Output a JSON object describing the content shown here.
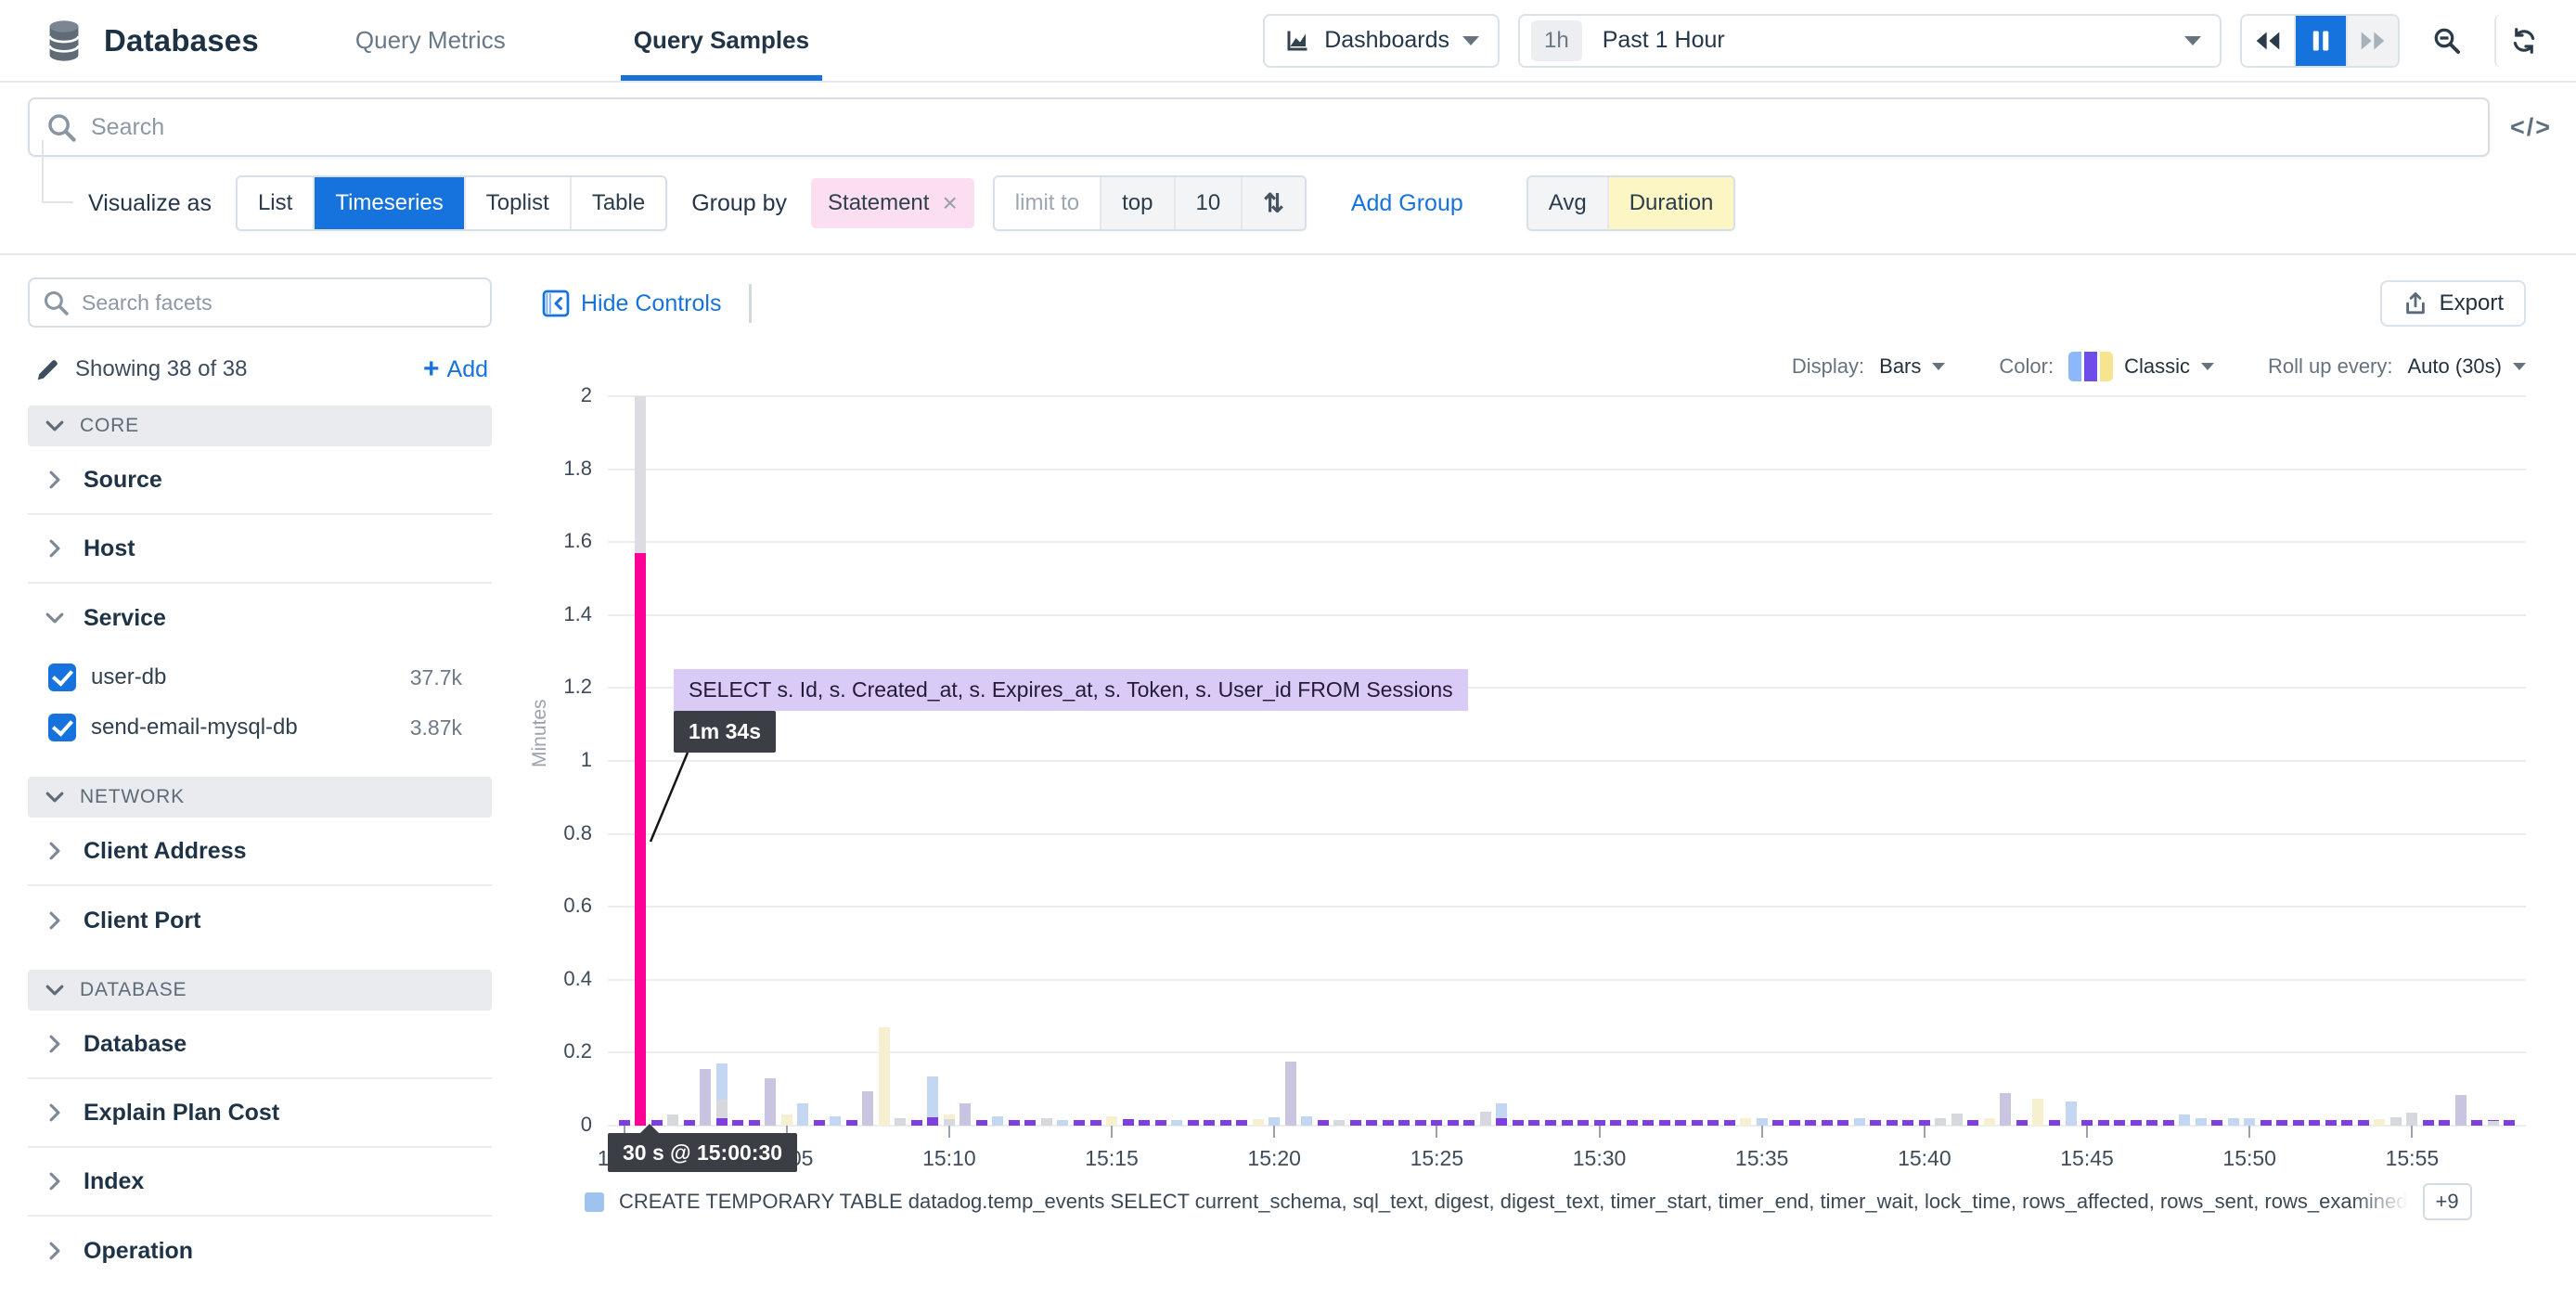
{
  "topnav": {
    "title": "Databases",
    "tabs": [
      {
        "label": "Query Metrics",
        "active": false
      },
      {
        "label": "Query Samples",
        "active": true
      }
    ],
    "dashboards_label": "Dashboards",
    "time_range_badge": "1h",
    "time_range_label": "Past 1 Hour"
  },
  "search": {
    "placeholder": "Search"
  },
  "filters": {
    "visualize_as_label": "Visualize as",
    "view_options": [
      "List",
      "Timeseries",
      "Toplist",
      "Table"
    ],
    "active_view": "Timeseries",
    "group_by_label": "Group by",
    "group_tag": "Statement",
    "limit_label": "limit to",
    "limit_mode": "top",
    "limit_value": "10",
    "add_group_label": "Add Group",
    "agg_options": [
      "Avg",
      "Duration"
    ],
    "active_agg": "Duration"
  },
  "sidebar": {
    "facet_search_placeholder": "Search facets",
    "showing_text": "Showing 38 of 38",
    "add_label": "Add",
    "sections": [
      {
        "type": "header",
        "label": "CORE"
      },
      {
        "type": "facet",
        "label": "Source"
      },
      {
        "type": "facet",
        "label": "Host"
      },
      {
        "type": "facet-open",
        "label": "Service",
        "items": [
          {
            "label": "user-db",
            "count": "37.7k",
            "checked": true
          },
          {
            "label": "send-email-mysql-db",
            "count": "3.87k",
            "checked": true
          }
        ]
      },
      {
        "type": "header",
        "label": "NETWORK"
      },
      {
        "type": "facet",
        "label": "Client Address"
      },
      {
        "type": "facet",
        "label": "Client Port"
      },
      {
        "type": "header",
        "label": "DATABASE"
      },
      {
        "type": "facet",
        "label": "Database"
      },
      {
        "type": "facet",
        "label": "Explain Plan Cost"
      },
      {
        "type": "facet",
        "label": "Index"
      },
      {
        "type": "facet",
        "label": "Operation"
      }
    ]
  },
  "chart_header": {
    "hide_controls_label": "Hide Controls",
    "export_label": "Export",
    "display_label": "Display:",
    "display_value": "Bars",
    "color_label": "Color:",
    "color_value": "Classic",
    "rollup_label": "Roll up every:",
    "rollup_value": "Auto (30s)"
  },
  "chart_data": {
    "type": "bar",
    "subtype": "stacked-timeseries",
    "ylabel": "Minutes",
    "ylim": [
      0,
      2
    ],
    "y_ticks": [
      "0",
      "0.2",
      "0.4",
      "0.6",
      "0.8",
      "1",
      "1.2",
      "1.4",
      "1.6",
      "1.8",
      "2"
    ],
    "x_ticks": [
      "15:00",
      "15:05",
      "15:10",
      "15:15",
      "15:20",
      "15:25",
      "15:30",
      "15:35",
      "15:40",
      "15:45",
      "15:50",
      "15:55"
    ],
    "x_span_minutes": 59,
    "slot_minutes": 0.5,
    "grid": true,
    "colors": {
      "purple": "#7d3fe0",
      "blue": "#c3d7f3",
      "lavender": "#c9c5e0",
      "gray": "#d6d8de",
      "yellow": "#f7f0d0",
      "pink": "#ff0097",
      "topgray": "#dcdde2"
    },
    "baseline_series": {
      "color": "purple",
      "value": 0.014,
      "note": "recurring 30s bars across nearly every slot"
    },
    "bars": [
      {
        "t": 0.5,
        "segments": [
          [
            "pink",
            1.57
          ],
          [
            "topgray",
            0.43
          ]
        ]
      },
      {
        "t": 1.5,
        "segments": [
          [
            "gray",
            0.03
          ]
        ]
      },
      {
        "t": 2.5,
        "segments": [
          [
            "lavender",
            0.155
          ]
        ]
      },
      {
        "t": 3,
        "segments": [
          [
            "purple",
            0.02
          ],
          [
            "gray",
            0.05
          ],
          [
            "blue",
            0.1
          ]
        ]
      },
      {
        "t": 4.5,
        "segments": [
          [
            "lavender",
            0.13
          ]
        ]
      },
      {
        "t": 5,
        "segments": [
          [
            "yellow",
            0.03
          ]
        ]
      },
      {
        "t": 5.5,
        "segments": [
          [
            "blue",
            0.06
          ]
        ]
      },
      {
        "t": 6.5,
        "segments": [
          [
            "blue",
            0.025
          ]
        ]
      },
      {
        "t": 7.5,
        "segments": [
          [
            "lavender",
            0.095
          ]
        ]
      },
      {
        "t": 8,
        "segments": [
          [
            "yellow",
            0.27
          ]
        ]
      },
      {
        "t": 8.5,
        "segments": [
          [
            "gray",
            0.02
          ]
        ]
      },
      {
        "t": 9.5,
        "segments": [
          [
            "purple",
            0.022
          ],
          [
            "blue",
            0.113
          ]
        ]
      },
      {
        "t": 10,
        "segments": [
          [
            "gray",
            0.018
          ],
          [
            "yellow",
            0.012
          ]
        ]
      },
      {
        "t": 10.5,
        "segments": [
          [
            "lavender",
            0.06
          ]
        ]
      },
      {
        "t": 11.5,
        "segments": [
          [
            "blue",
            0.025
          ]
        ]
      },
      {
        "t": 13,
        "segments": [
          [
            "gray",
            0.02
          ]
        ]
      },
      {
        "t": 13.5,
        "segments": [
          [
            "blue",
            0.015
          ]
        ]
      },
      {
        "t": 15,
        "segments": [
          [
            "yellow",
            0.025
          ]
        ]
      },
      {
        "t": 15.5,
        "segments": [
          [
            "purple",
            0.018
          ]
        ]
      },
      {
        "t": 17,
        "segments": [
          [
            "blue",
            0.016
          ]
        ]
      },
      {
        "t": 19.5,
        "segments": [
          [
            "yellow",
            0.018
          ]
        ]
      },
      {
        "t": 20,
        "segments": [
          [
            "blue",
            0.022
          ]
        ]
      },
      {
        "t": 20.5,
        "segments": [
          [
            "lavender",
            0.175
          ]
        ]
      },
      {
        "t": 21,
        "segments": [
          [
            "blue",
            0.026
          ]
        ]
      },
      {
        "t": 22,
        "segments": [
          [
            "gray",
            0.015
          ]
        ]
      },
      {
        "t": 26.5,
        "segments": [
          [
            "gray",
            0.038
          ]
        ]
      },
      {
        "t": 27,
        "segments": [
          [
            "purple",
            0.02
          ],
          [
            "blue",
            0.04
          ]
        ]
      },
      {
        "t": 34.5,
        "segments": [
          [
            "yellow",
            0.02
          ]
        ]
      },
      {
        "t": 35,
        "segments": [
          [
            "blue",
            0.02
          ]
        ]
      },
      {
        "t": 38,
        "segments": [
          [
            "blue",
            0.02
          ]
        ]
      },
      {
        "t": 40.5,
        "segments": [
          [
            "gray",
            0.02
          ]
        ]
      },
      {
        "t": 41,
        "segments": [
          [
            "gray",
            0.032
          ]
        ]
      },
      {
        "t": 42,
        "segments": [
          [
            "yellow",
            0.02
          ]
        ]
      },
      {
        "t": 42.5,
        "segments": [
          [
            "lavender",
            0.09
          ]
        ]
      },
      {
        "t": 43.5,
        "segments": [
          [
            "yellow",
            0.075
          ]
        ]
      },
      {
        "t": 44.5,
        "segments": [
          [
            "blue",
            0.065
          ]
        ]
      },
      {
        "t": 48,
        "segments": [
          [
            "blue",
            0.03
          ]
        ]
      },
      {
        "t": 48.5,
        "segments": [
          [
            "blue",
            0.02
          ]
        ]
      },
      {
        "t": 49.5,
        "segments": [
          [
            "blue",
            0.02
          ]
        ]
      },
      {
        "t": 50,
        "segments": [
          [
            "blue",
            0.02
          ]
        ]
      },
      {
        "t": 54,
        "segments": [
          [
            "yellow",
            0.018
          ]
        ]
      },
      {
        "t": 54.5,
        "segments": [
          [
            "gray",
            0.022
          ]
        ]
      },
      {
        "t": 55,
        "segments": [
          [
            "gray",
            0.035
          ]
        ]
      },
      {
        "t": 56.5,
        "segments": [
          [
            "lavender",
            0.085
          ]
        ]
      },
      {
        "t": 57.5,
        "segments": [
          [
            "gray",
            0.012
          ]
        ]
      }
    ],
    "tooltip": {
      "query": "SELECT s. Id, s. Created_at, s. Expires_at, s. Token, s. User_id FROM Sessions",
      "duration": "1m 34s",
      "time": "30 s @ 15:00:30"
    },
    "legend": {
      "color": "#9ec3ef",
      "text": "CREATE TEMPORARY TABLE datadog.temp_events SELECT current_schema, sql_text, digest, digest_text, timer_start, timer_end, timer_wait, lock_time, rows_affected, rows_sent, rows_examined",
      "more": "+9"
    }
  }
}
